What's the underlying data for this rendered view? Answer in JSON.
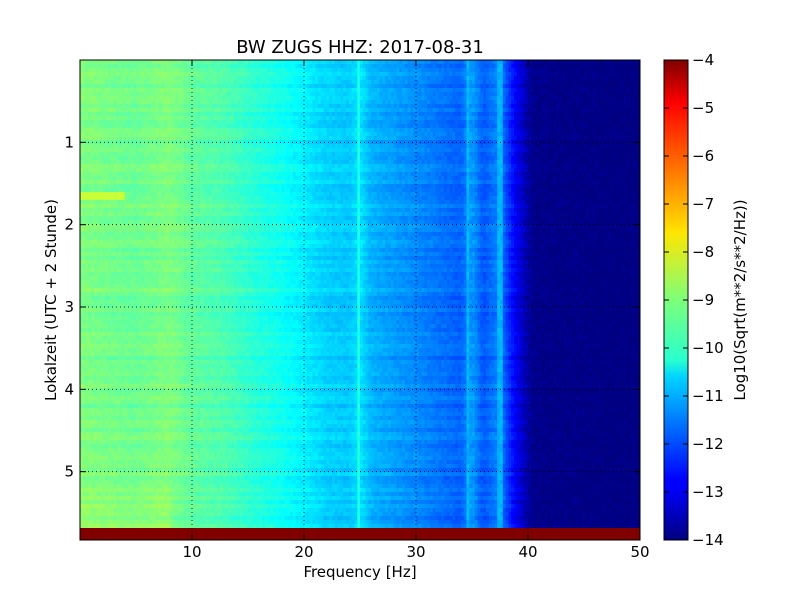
{
  "chart_data": {
    "type": "heatmap",
    "title": "BW ZUGS HHZ: 2017-08-31",
    "xlabel": "Frequency [Hz]",
    "ylabel": "Lokalzeit (UTC + 2 Stunde)",
    "xlim": [
      0,
      50
    ],
    "ylim": [
      5.83,
      0
    ],
    "x_ticks": [
      10,
      20,
      30,
      40,
      50
    ],
    "y_ticks": [
      1,
      2,
      3,
      4,
      5
    ],
    "grid": true,
    "colormap": "jet",
    "colorbar": {
      "label": "Log10(Sqrt(m**2/s**2/Hz))",
      "range": [
        -14,
        -4
      ],
      "ticks": [
        -4,
        -5,
        -6,
        -7,
        -8,
        -9,
        -10,
        -11,
        -12,
        -13,
        -14
      ]
    },
    "freq_profile": {
      "x": [
        0,
        2,
        5,
        8,
        10,
        13,
        16,
        18,
        20,
        22,
        24,
        25,
        26,
        28,
        30,
        32,
        34,
        35,
        36,
        37.5,
        38.5,
        39.5,
        40.5,
        50
      ],
      "value": [
        -9.0,
        -9.1,
        -9.2,
        -9.0,
        -9.3,
        -9.5,
        -9.9,
        -10.1,
        -10.4,
        -10.7,
        -10.8,
        -10.5,
        -11.0,
        -11.2,
        -11.4,
        -11.6,
        -11.8,
        -11.2,
        -11.9,
        -11.4,
        -12.5,
        -13.3,
        -13.9,
        -14.0
      ]
    },
    "features": [
      {
        "type": "time_band",
        "time": [
          1.6,
          1.7
        ],
        "freq": [
          0,
          4
        ],
        "value": -8.3
      },
      {
        "type": "freq_line",
        "freq": 24.8,
        "value": -10.0
      },
      {
        "type": "freq_line",
        "freq": 34.7,
        "value": -11.0
      },
      {
        "type": "freq_line",
        "freq": 37.5,
        "value": -11.0
      },
      {
        "type": "saturated_row",
        "time": [
          5.7,
          5.83
        ],
        "value": -4.0
      }
    ]
  }
}
